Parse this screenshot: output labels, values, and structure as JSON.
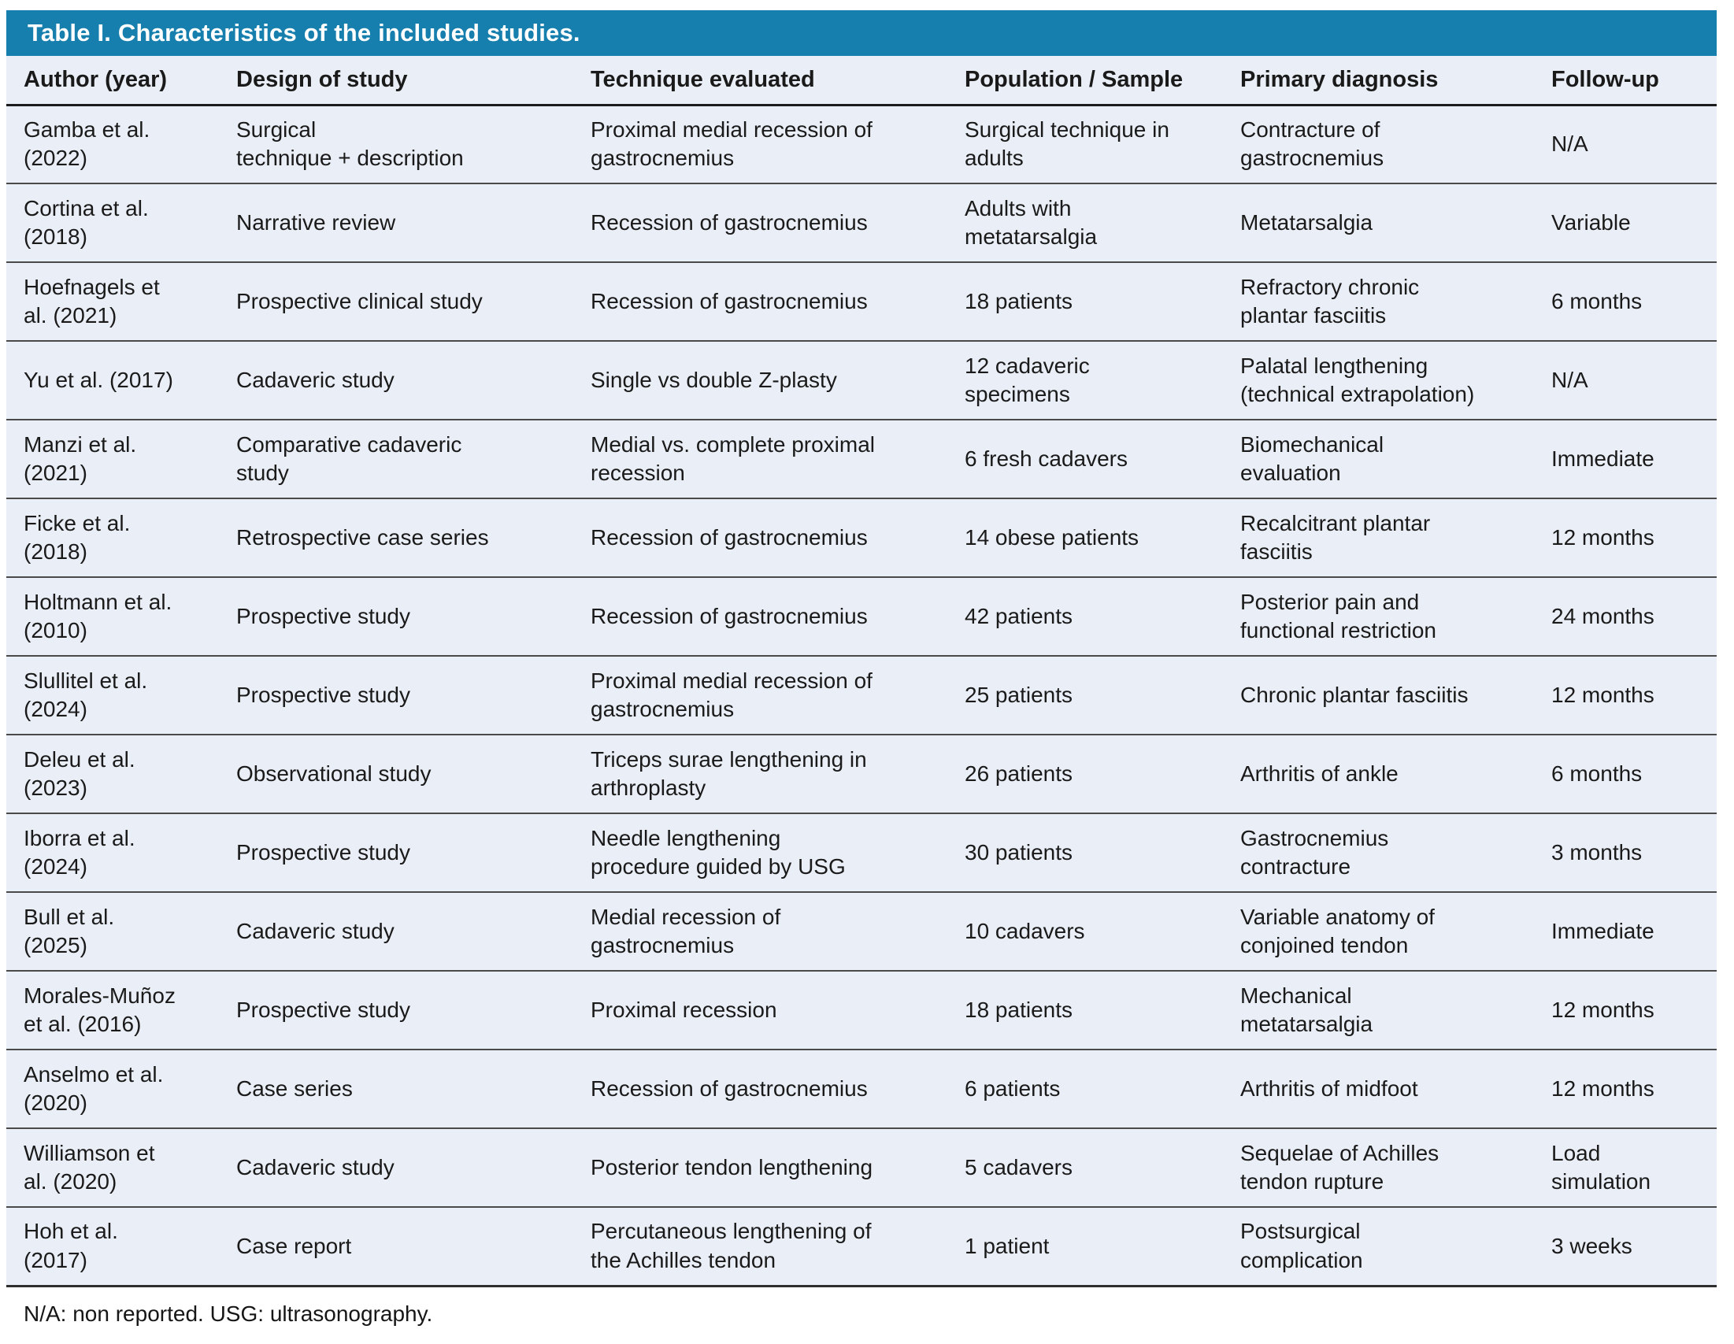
{
  "table": {
    "title": "Table I. Characteristics of the included studies.",
    "columns": [
      "Author (year)",
      "Design of study",
      "Technique evaluated",
      "Population / Sample",
      "Primary diagnosis",
      "Follow-up"
    ],
    "rows": [
      [
        "Gamba et al.\n(2022)",
        "Surgical\ntechnique + description",
        "Proximal medial recession of\ngastrocnemius",
        "Surgical technique in\nadults",
        "Contracture of\ngastrocnemius",
        "N/A"
      ],
      [
        "Cortina et al.\n(2018)",
        "Narrative review",
        "Recession of gastrocnemius",
        "Adults with\nmetatarsalgia",
        "Metatarsalgia",
        "Variable"
      ],
      [
        "Hoefnagels et\nal. (2021)",
        "Prospective clinical study",
        "Recession of gastrocnemius",
        "18 patients",
        "Refractory chronic\nplantar fasciitis",
        "6 months"
      ],
      [
        "Yu et al. (2017)",
        "Cadaveric study",
        "Single vs double Z-plasty",
        "12 cadaveric\nspecimens",
        "Palatal lengthening\n(technical extrapolation)",
        "N/A"
      ],
      [
        "Manzi et al.\n(2021)",
        "Comparative cadaveric\nstudy",
        "Medial vs. complete proximal\nrecession",
        "6 fresh cadavers",
        "Biomechanical\nevaluation",
        "Immediate"
      ],
      [
        "Ficke et al.\n(2018)",
        "Retrospective case series",
        "Recession of gastrocnemius",
        "14 obese patients",
        "Recalcitrant plantar\nfasciitis",
        "12 months"
      ],
      [
        "Holtmann et al.\n(2010)",
        "Prospective study",
        "Recession of gastrocnemius",
        "42 patients",
        "Posterior pain and\nfunctional restriction",
        "24 months"
      ],
      [
        "Slullitel et al.\n(2024)",
        "Prospective study",
        "Proximal medial recession of\ngastrocnemius",
        "25 patients",
        "Chronic plantar fasciitis",
        "12 months"
      ],
      [
        "Deleu et al.\n(2023)",
        "Observational study",
        "Triceps surae lengthening in\narthroplasty",
        "26 patients",
        "Arthritis of ankle",
        "6 months"
      ],
      [
        "Iborra et al.\n(2024)",
        "Prospective study",
        "Needle lengthening\nprocedure guided by USG",
        "30 patients",
        "Gastrocnemius\ncontracture",
        "3 months"
      ],
      [
        "Bull et al.\n(2025)",
        "Cadaveric study",
        "Medial recession of\ngastrocnemius",
        "10 cadavers",
        "Variable anatomy of\nconjoined tendon",
        "Immediate"
      ],
      [
        "Morales-Muñoz\net al. (2016)",
        "Prospective study",
        "Proximal recession",
        "18 patients",
        "Mechanical\nmetatarsalgia",
        "12 months"
      ],
      [
        "Anselmo et al.\n(2020)",
        "Case series",
        "Recession of gastrocnemius",
        "6 patients",
        "Arthritis of midfoot",
        "12 months"
      ],
      [
        "Williamson et\nal. (2020)",
        "Cadaveric study",
        "Posterior tendon lengthening",
        "5 cadavers",
        "Sequelae of Achilles\ntendon rupture",
        "Load\nsimulation"
      ],
      [
        "Hoh et al.\n(2017)",
        "Case report",
        "Percutaneous lengthening of\nthe Achilles tendon",
        "1 patient",
        "Postsurgical\ncomplication",
        "3 weeks"
      ]
    ],
    "footnote": "N/A: non reported. USG: ultrasonography.",
    "colors": {
      "title_bar_bg": "#177fad",
      "title_text": "#ffffff",
      "row_bg": "#eaeef6",
      "row_border": "#4a4a4a",
      "text": "#1a1a1a"
    }
  }
}
